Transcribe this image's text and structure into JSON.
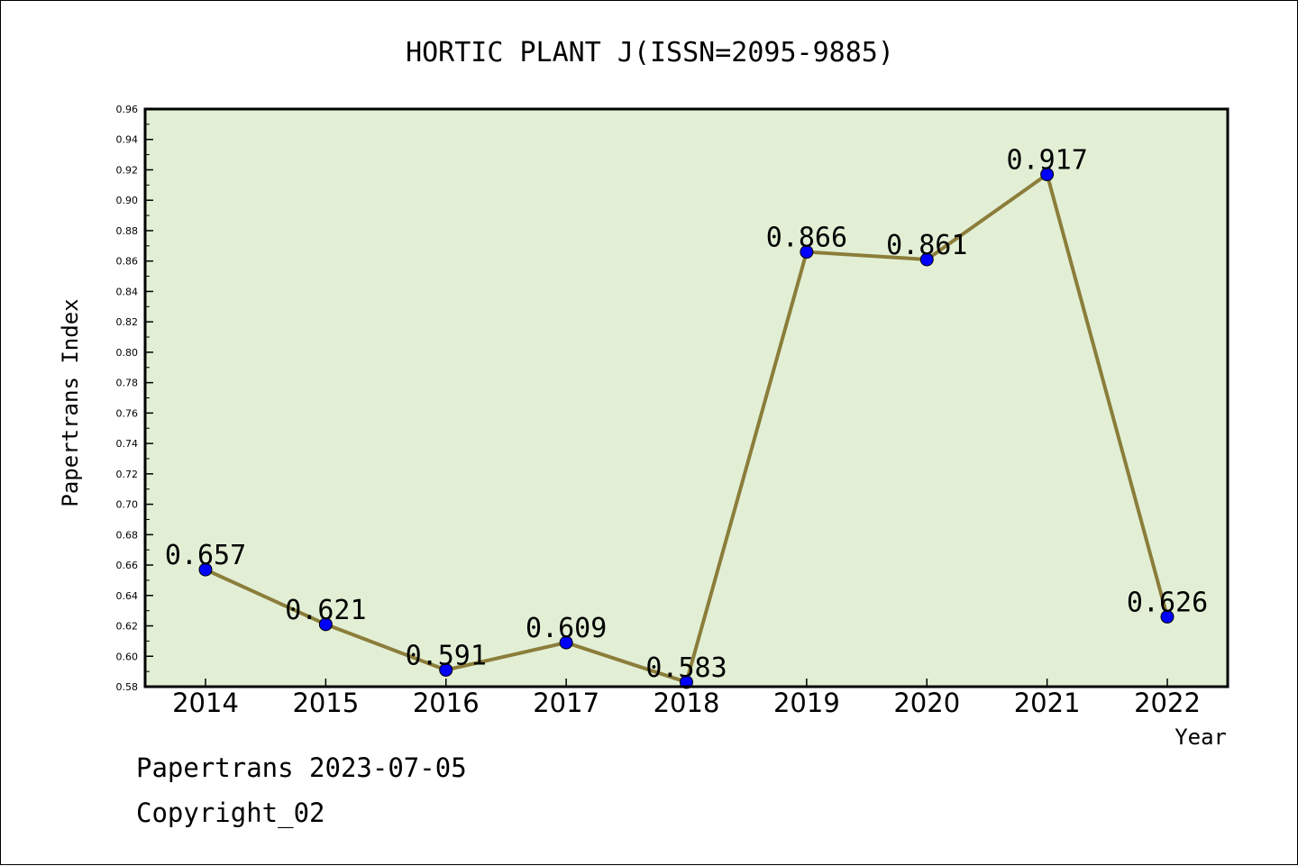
{
  "chart_data": {
    "type": "line",
    "title": "HORTIC PLANT J(ISSN=2095-9885)",
    "xlabel": "Year",
    "ylabel": "Papertrans Index",
    "categories": [
      "2014",
      "2015",
      "2016",
      "2017",
      "2018",
      "2019",
      "2020",
      "2021",
      "2022"
    ],
    "series": [
      {
        "values": [
          0.657,
          0.621,
          0.591,
          0.609,
          0.583,
          0.866,
          0.861,
          0.917,
          0.626
        ],
        "data_labels": [
          "0.657",
          "0.621",
          "0.591",
          "0.609",
          "0.583",
          "0.866",
          "0.861",
          "0.917",
          "0.626"
        ]
      }
    ],
    "ylim": [
      0.58,
      0.96
    ],
    "y_ticks": [
      "0.58",
      "0.60",
      "0.62",
      "0.64",
      "0.66",
      "0.68",
      "0.70",
      "0.72",
      "0.74",
      "0.76",
      "0.78",
      "0.80",
      "0.82",
      "0.84",
      "0.86",
      "0.88",
      "0.90",
      "0.92",
      "0.94",
      "0.96"
    ],
    "grid": false,
    "colors": {
      "plot_background": "#e2efd5",
      "line": "#8b7d3a",
      "marker": "#0000ff"
    }
  },
  "footer": {
    "line1": "Papertrans 2023-07-05",
    "line2": "Copyright_02"
  }
}
